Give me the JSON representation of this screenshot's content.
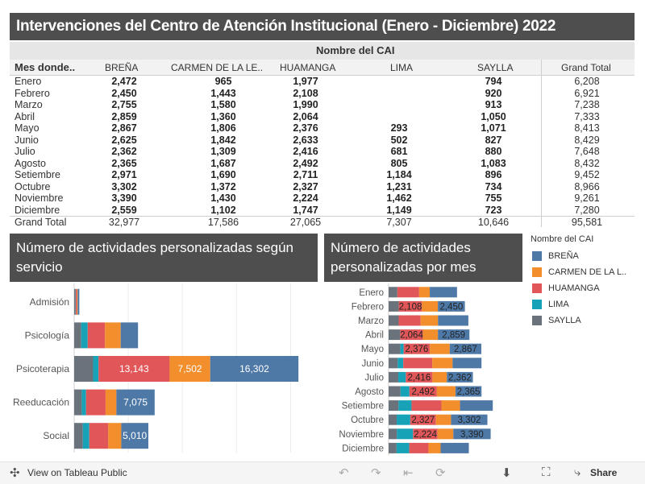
{
  "title": "Intervenciones del Centro de Atención Institucional (Enero - Diciembre) 2022",
  "colors": {
    "brena": "#4e79a7",
    "carmen": "#f28e2b",
    "huamanga": "#e15759",
    "lima": "#17a2b8",
    "saylla": "#6a737b"
  },
  "table": {
    "group_header": "Nombre del CAI",
    "row_header": "Mes donde..",
    "columns": [
      "BREÑA",
      "CARMEN DE LA LE..",
      "HUAMANGA",
      "LIMA",
      "SAYLLA",
      "Grand Total"
    ],
    "rows": [
      {
        "label": "Enero",
        "v": [
          "2,472",
          "965",
          "1,977",
          "",
          "794",
          "6,208"
        ]
      },
      {
        "label": "Febrero",
        "v": [
          "2,450",
          "1,443",
          "2,108",
          "",
          "920",
          "6,921"
        ]
      },
      {
        "label": "Marzo",
        "v": [
          "2,755",
          "1,580",
          "1,990",
          "",
          "913",
          "7,238"
        ]
      },
      {
        "label": "Abril",
        "v": [
          "2,859",
          "1,360",
          "2,064",
          "",
          "1,050",
          "7,333"
        ]
      },
      {
        "label": "Mayo",
        "v": [
          "2,867",
          "1,806",
          "2,376",
          "293",
          "1,071",
          "8,413"
        ]
      },
      {
        "label": "Junio",
        "v": [
          "2,625",
          "1,842",
          "2,633",
          "502",
          "827",
          "8,429"
        ]
      },
      {
        "label": "Julio",
        "v": [
          "2,362",
          "1,309",
          "2,416",
          "681",
          "880",
          "7,648"
        ]
      },
      {
        "label": "Agosto",
        "v": [
          "2,365",
          "1,687",
          "2,492",
          "805",
          "1,083",
          "8,432"
        ]
      },
      {
        "label": "Setiembre",
        "v": [
          "2,971",
          "1,690",
          "2,711",
          "1,184",
          "896",
          "9,452"
        ]
      },
      {
        "label": "Octubre",
        "v": [
          "3,302",
          "1,372",
          "2,327",
          "1,231",
          "734",
          "8,966"
        ]
      },
      {
        "label": "Noviembre",
        "v": [
          "3,390",
          "1,430",
          "2,224",
          "1,462",
          "755",
          "9,261"
        ]
      },
      {
        "label": "Diciembre",
        "v": [
          "2,559",
          "1,102",
          "1,747",
          "1,149",
          "723",
          "7,280"
        ]
      }
    ],
    "grand_total": {
      "label": "Grand Total",
      "v": [
        "32,977",
        "17,586",
        "27,065",
        "7,307",
        "10,646",
        "95,581"
      ]
    }
  },
  "left_panel_title": "Número de actividades personalizadas según servicio",
  "right_panel_title": "Número de actividades personalizadas por mes",
  "legend": {
    "title": "Nombre del CAI",
    "items": [
      {
        "name": "BREÑA",
        "color": "#4e79a7"
      },
      {
        "name": "CARMEN DE LA L..",
        "color": "#f28e2b"
      },
      {
        "name": "HUAMANGA",
        "color": "#e15759"
      },
      {
        "name": "LIMA",
        "color": "#17a2b8"
      },
      {
        "name": "SAYLLA",
        "color": "#6a737b"
      }
    ]
  },
  "chart_data": [
    {
      "type": "bar",
      "orientation": "horizontal-stacked",
      "title": "Número de actividades personalizadas según servicio",
      "categories": [
        "Admisión",
        "Psicología",
        "Psicoterapia",
        "Reeducación",
        "Social"
      ],
      "series": [
        {
          "name": "SAYLLA",
          "values": [
            150,
            1300,
            3500,
            1400,
            1600
          ]
        },
        {
          "name": "LIMA",
          "values": [
            100,
            1200,
            1000,
            800,
            1200
          ]
        },
        {
          "name": "HUAMANGA",
          "values": [
            250,
            3200,
            13143,
            3600,
            3500
          ]
        },
        {
          "name": "CARMEN DE LA LE..",
          "values": [
            150,
            2900,
            7502,
            2000,
            2400
          ]
        },
        {
          "name": "BREÑA",
          "values": [
            300,
            3200,
            16302,
            7075,
            5010
          ]
        }
      ],
      "labels": [
        {
          "category": "Psicoterapia",
          "series": "HUAMANGA",
          "text": "13,143"
        },
        {
          "category": "Psicoterapia",
          "series": "CARMEN DE LA LE..",
          "text": "7,502"
        },
        {
          "category": "Psicoterapia",
          "series": "BREÑA",
          "text": "16,302"
        },
        {
          "category": "Reeducación",
          "series": "BREÑA",
          "text": "7,075"
        },
        {
          "category": "Social",
          "series": "BREÑA",
          "text": "5,010"
        }
      ],
      "xlim": [
        0,
        45000
      ]
    },
    {
      "type": "bar",
      "orientation": "horizontal-stacked",
      "title": "Número de actividades personalizadas por mes",
      "categories": [
        "Enero",
        "Febrero",
        "Marzo",
        "Abril",
        "Mayo",
        "Junio",
        "Julio",
        "Agosto",
        "Setiembre",
        "Octubre",
        "Noviembre",
        "Diciembre"
      ],
      "series": [
        {
          "name": "SAYLLA",
          "values": [
            794,
            920,
            913,
            1050,
            1071,
            827,
            880,
            1083,
            896,
            734,
            755,
            723
          ]
        },
        {
          "name": "LIMA",
          "values": [
            0,
            0,
            0,
            0,
            293,
            502,
            681,
            805,
            1184,
            1231,
            1462,
            1149
          ]
        },
        {
          "name": "HUAMANGA",
          "values": [
            1977,
            2108,
            1990,
            2064,
            2376,
            2633,
            2416,
            2492,
            2711,
            2327,
            2224,
            1747
          ]
        },
        {
          "name": "CARMEN DE LA LE..",
          "values": [
            965,
            1443,
            1580,
            1360,
            1806,
            1842,
            1309,
            1687,
            1690,
            1372,
            1430,
            1102
          ]
        },
        {
          "name": "BREÑA",
          "values": [
            2472,
            2450,
            2755,
            2859,
            2867,
            2625,
            2362,
            2365,
            2971,
            3302,
            3390,
            2559
          ]
        }
      ],
      "labels": [
        {
          "category": "Febrero",
          "series": "HUAMANGA",
          "text": "2,108"
        },
        {
          "category": "Febrero",
          "series": "BREÑA",
          "text": "2,450"
        },
        {
          "category": "Abril",
          "series": "HUAMANGA",
          "text": "2,064"
        },
        {
          "category": "Abril",
          "series": "BREÑA",
          "text": "2,859"
        },
        {
          "category": "Mayo",
          "series": "HUAMANGA",
          "text": "2,376"
        },
        {
          "category": "Mayo",
          "series": "BREÑA",
          "text": "2,867"
        },
        {
          "category": "Julio",
          "series": "HUAMANGA",
          "text": "2,416"
        },
        {
          "category": "Julio",
          "series": "BREÑA",
          "text": "2,362"
        },
        {
          "category": "Agosto",
          "series": "HUAMANGA",
          "text": "2,492"
        },
        {
          "category": "Agosto",
          "series": "BREÑA",
          "text": "2,365"
        },
        {
          "category": "Octubre",
          "series": "HUAMANGA",
          "text": "2,327"
        },
        {
          "category": "Octubre",
          "series": "BREÑA",
          "text": "3,302"
        },
        {
          "category": "Noviembre",
          "series": "HUAMANGA",
          "text": "2,224"
        },
        {
          "category": "Noviembre",
          "series": "BREÑA",
          "text": "3,390"
        }
      ],
      "xlim": [
        0,
        12000
      ]
    }
  ],
  "footer": {
    "view_label": "View on Tableau Public",
    "share_label": "Share"
  }
}
